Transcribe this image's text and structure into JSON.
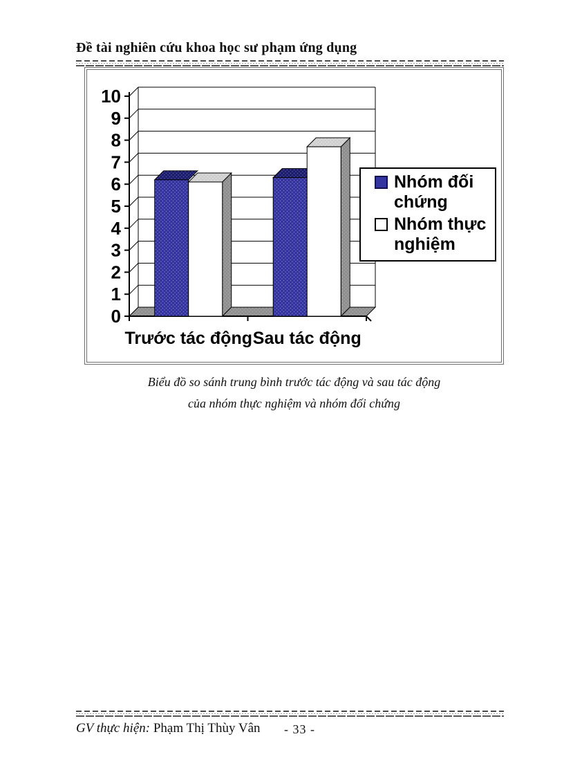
{
  "page": {
    "background": "#ffffff"
  },
  "header": {
    "title": "Đề tài nghiên cứu khoa học sư phạm ứng dụng"
  },
  "chart_caption": {
    "line1": "Biểu đồ so sánh trung bình trước tác động và sau tác động",
    "line2": "của nhóm thực nghiệm và nhóm đối chứng"
  },
  "footer": {
    "role_label": "GV thực hiện:",
    "author": "Phạm Thị Thùy Vân",
    "page_number": "- 33 -"
  },
  "chart_data": {
    "type": "bar",
    "style": "3d-clustered-column",
    "title": "",
    "xlabel": "",
    "ylabel": "",
    "categories": [
      "Trước tác động",
      "Sau tác động"
    ],
    "series": [
      {
        "name": "Nhóm đối chứng",
        "values": [
          6.2,
          6.3
        ],
        "color": "#3434A0",
        "top_color": "#1D1D70",
        "border": "#000000"
      },
      {
        "name": "Nhóm thực nghiệm",
        "values": [
          6.1,
          7.7
        ],
        "color": "#FFFFFF",
        "top_color": "#CFCFCF",
        "side_color": "#8F8F8F",
        "border": "#000000"
      }
    ],
    "ylim": [
      0,
      10
    ],
    "yticks": [
      0,
      1,
      2,
      3,
      4,
      5,
      6,
      7,
      8,
      9,
      10
    ],
    "grid": true,
    "legend_position": "right-overlay",
    "floor_color": "#909090",
    "wall_color": "#FFFFFF",
    "gridline_color": "#000000"
  }
}
